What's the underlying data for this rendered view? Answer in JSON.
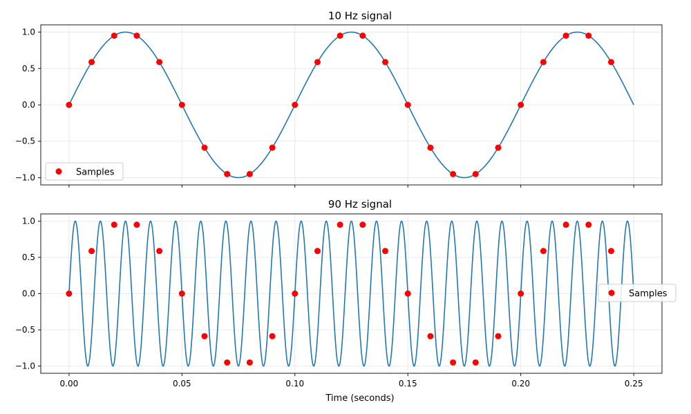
{
  "colors": {
    "signal": "#1f77b4",
    "samples": "#ff0000",
    "grid": "#e5e5e5",
    "axes": "#000000"
  },
  "chart_data": [
    {
      "type": "line",
      "title": "10 Hz signal",
      "signal_frequency_hz": 10,
      "xlim": [
        -0.0125,
        0.2625
      ],
      "ylim": [
        -1.1,
        1.1
      ],
      "xticks": [
        0.0,
        0.05,
        0.1,
        0.15,
        0.2,
        0.25
      ],
      "xtick_labels": [
        "",
        "",
        "",
        "",
        "",
        ""
      ],
      "yticks": [
        -1.0,
        -0.5,
        0.0,
        0.5,
        1.0
      ],
      "ytick_labels": [
        "−1.0",
        "−0.5",
        "0.0",
        "0.5",
        "1.0"
      ],
      "xlabel": "",
      "grid": true,
      "legend": {
        "position": "lower-left",
        "entries": [
          "Samples"
        ]
      },
      "samples": {
        "name": "Samples",
        "x": [
          0.0,
          0.01,
          0.02,
          0.03,
          0.04,
          0.05,
          0.06,
          0.07,
          0.08,
          0.09,
          0.1,
          0.11,
          0.12,
          0.13,
          0.14,
          0.15,
          0.16,
          0.17,
          0.18,
          0.19,
          0.2,
          0.21,
          0.22,
          0.23,
          0.24
        ],
        "y": [
          0.0,
          0.588,
          0.951,
          0.951,
          0.588,
          0.0,
          -0.588,
          -0.951,
          -0.951,
          -0.588,
          0.0,
          0.588,
          0.951,
          0.951,
          0.588,
          0.0,
          -0.588,
          -0.951,
          -0.951,
          -0.588,
          0.0,
          0.588,
          0.951,
          0.951,
          0.588
        ]
      }
    },
    {
      "type": "line",
      "title": "90 Hz signal",
      "signal_frequency_hz": 90,
      "xlim": [
        -0.0125,
        0.2625
      ],
      "ylim": [
        -1.1,
        1.1
      ],
      "xticks": [
        0.0,
        0.05,
        0.1,
        0.15,
        0.2,
        0.25
      ],
      "xtick_labels": [
        "0.00",
        "0.05",
        "0.10",
        "0.15",
        "0.20",
        "0.25"
      ],
      "yticks": [
        -1.0,
        -0.5,
        0.0,
        0.5,
        1.0
      ],
      "ytick_labels": [
        "−1.0",
        "−0.5",
        "0.0",
        "0.5",
        "1.0"
      ],
      "xlabel": "Time (seconds)",
      "grid": true,
      "legend": {
        "position": "center-right",
        "entries": [
          "Samples"
        ]
      },
      "samples": {
        "name": "Samples",
        "x": [
          0.0,
          0.01,
          0.02,
          0.03,
          0.04,
          0.05,
          0.06,
          0.07,
          0.08,
          0.09,
          0.1,
          0.11,
          0.12,
          0.13,
          0.14,
          0.15,
          0.16,
          0.17,
          0.18,
          0.19,
          0.2,
          0.21,
          0.22,
          0.23,
          0.24
        ],
        "y": [
          0.0,
          0.588,
          0.951,
          0.951,
          0.588,
          0.0,
          -0.588,
          -0.951,
          -0.951,
          -0.588,
          0.0,
          0.588,
          0.951,
          0.951,
          0.588,
          0.0,
          -0.588,
          -0.951,
          -0.951,
          -0.588,
          0.0,
          0.588,
          0.951,
          0.951,
          0.588
        ]
      }
    }
  ]
}
